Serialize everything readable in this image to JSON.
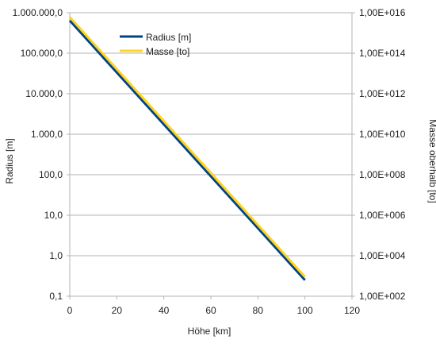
{
  "chart_data": {
    "type": "line",
    "xlabel": "Höhe [km]",
    "ylabel": "Radius [m]",
    "y2label": "Masse oberhalb [to]",
    "xlim": [
      0,
      120
    ],
    "x_ticks": [
      0,
      20,
      40,
      60,
      80,
      100,
      120
    ],
    "x_tick_labels": [
      "0",
      "20",
      "40",
      "60",
      "80",
      "100",
      "120"
    ],
    "y_scale": "log",
    "ylim": [
      0.1,
      1000000
    ],
    "y_ticks": [
      0.1,
      1,
      10,
      100,
      1000,
      10000,
      100000,
      1000000
    ],
    "y_tick_labels": [
      "0,1",
      "1,0",
      "10,0",
      "100,0",
      "1.000,0",
      "10.000,0",
      "100.000,0",
      "1.000.000,0"
    ],
    "y2_scale": "log",
    "y2lim": [
      100,
      1e+16
    ],
    "y2_ticks": [
      100,
      10000,
      1000000,
      100000000.0,
      10000000000.0,
      1000000000000.0,
      100000000000000.0,
      1e+16
    ],
    "y2_tick_labels": [
      "1,00E+002",
      "1,00E+004",
      "1,00E+006",
      "1,00E+008",
      "1,00E+010",
      "1,00E+012",
      "1,00E+014",
      "1,00E+016"
    ],
    "grid": "horizontal",
    "legend_position": "top-left",
    "series": [
      {
        "name": "Radius [m]",
        "axis": "left",
        "color": "#004586",
        "x": [
          0,
          100
        ],
        "y": [
          640000,
          0.25
        ]
      },
      {
        "name": "Masse [to]",
        "axis": "right",
        "color": "#ffd320",
        "x": [
          0,
          100
        ],
        "y": [
          6000000000000000.0,
          900
        ]
      }
    ]
  }
}
